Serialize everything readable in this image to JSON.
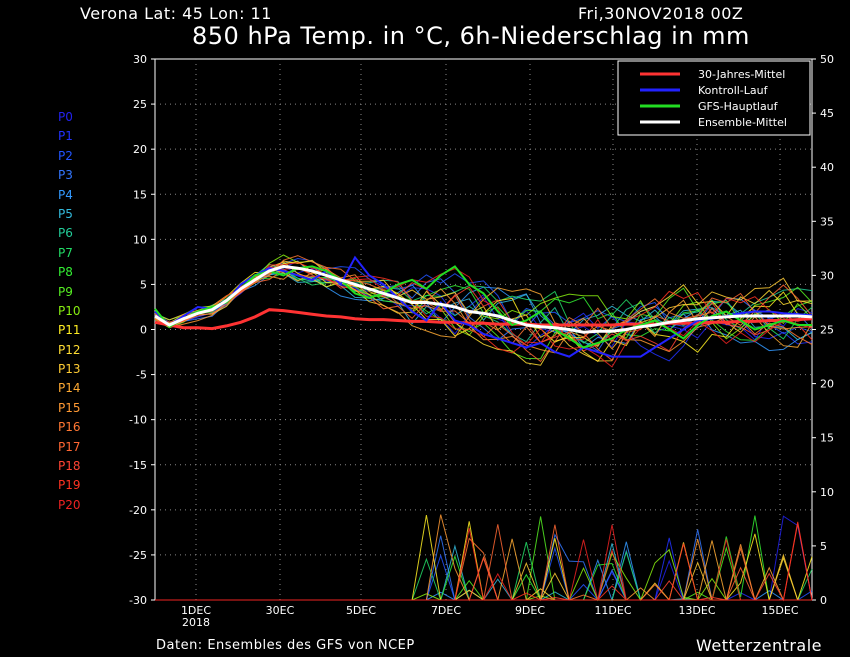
{
  "header": {
    "location": "Verona   Lat: 45 Lon: 11",
    "date": "Fri,30NOV2018 00Z",
    "title": "850 hPa Temp. in °C, 6h-Niederschlag in mm"
  },
  "footer": {
    "source": "Daten: Ensembles des GFS von NCEP",
    "brand": "Wetterzentrale"
  },
  "members": [
    {
      "label": "P0",
      "color": "#2222ee"
    },
    {
      "label": "P1",
      "color": "#2233ff"
    },
    {
      "label": "P2",
      "color": "#2255ff"
    },
    {
      "label": "P3",
      "color": "#3377ff"
    },
    {
      "label": "P4",
      "color": "#3399ff"
    },
    {
      "label": "P5",
      "color": "#33bbdd"
    },
    {
      "label": "P6",
      "color": "#22cc99"
    },
    {
      "label": "P7",
      "color": "#22dd66"
    },
    {
      "label": "P8",
      "color": "#33ee33"
    },
    {
      "label": "P9",
      "color": "#55ee22"
    },
    {
      "label": "P10",
      "color": "#88ee11"
    },
    {
      "label": "P11",
      "color": "#ffee22"
    },
    {
      "label": "P12",
      "color": "#ffdd33"
    },
    {
      "label": "P13",
      "color": "#ffcc33"
    },
    {
      "label": "P14",
      "color": "#ffaa33"
    },
    {
      "label": "P15",
      "color": "#ff9933"
    },
    {
      "label": "P16",
      "color": "#ff7733"
    },
    {
      "label": "P17",
      "color": "#ff6633"
    },
    {
      "label": "P18",
      "color": "#ff4433"
    },
    {
      "label": "P19",
      "color": "#ff3322"
    },
    {
      "label": "P20",
      "color": "#ee2222"
    }
  ],
  "chart_data": {
    "type": "line",
    "y_left": {
      "ticks": [
        30,
        25,
        20,
        15,
        10,
        5,
        0,
        -5,
        -10,
        -15,
        -20,
        -25,
        -30
      ],
      "range": [
        -30,
        30
      ]
    },
    "y_right": {
      "ticks": [
        50,
        45,
        40,
        35,
        30,
        25,
        20,
        15,
        10,
        5,
        0
      ],
      "range": [
        0,
        50
      ]
    },
    "x_tick_labels": [
      "1DEC",
      "30EC",
      "5DEC",
      "7DEC",
      "9DEC",
      "11DEC",
      "13DEC",
      "15DEC"
    ],
    "x_sublabel": "2018",
    "legend_position": "top-right",
    "legend": [
      {
        "label": "30-Jahres-Mittel",
        "color": "#ff3333"
      },
      {
        "label": "Kontroll-Lauf",
        "color": "#2222ff"
      },
      {
        "label": "GFS-Hauptlauf",
        "color": "#22dd22"
      },
      {
        "label": "Ensemble-Mittel",
        "color": "#ffffff"
      }
    ],
    "series": [
      {
        "name": "30-Jahres-Mittel",
        "color": "#ff3333",
        "width": 3,
        "values": [
          0.8,
          0.5,
          0.2,
          0.2,
          0.1,
          0.4,
          0.8,
          1.4,
          2.2,
          2.1,
          1.9,
          1.7,
          1.5,
          1.4,
          1.2,
          1.1,
          1.1,
          1.0,
          0.9,
          0.9,
          0.8,
          0.8,
          0.7,
          0.7,
          0.6,
          0.6,
          0.6,
          0.5,
          0.5,
          0.5,
          0.5,
          0.5,
          0.5,
          0.6,
          0.6,
          0.6,
          0.7,
          0.7,
          0.7,
          0.8,
          0.8,
          0.9,
          0.9,
          1.0,
          1.0,
          1.1,
          1.2
        ]
      },
      {
        "name": "Kontroll-Lauf",
        "color": "#2222ff",
        "width": 2,
        "values": [
          2.0,
          0.5,
          1.5,
          2.5,
          2.3,
          3.0,
          5.0,
          6.0,
          6.8,
          6.5,
          6.0,
          5.5,
          6.5,
          5.0,
          8.0,
          6.0,
          5.0,
          3.5,
          2.0,
          1.0,
          3.0,
          1.0,
          0.5,
          -0.5,
          -1.0,
          -1.5,
          -2.0,
          -1.5,
          -2.5,
          -3.0,
          -2.0,
          -2.5,
          -3.0,
          -3.0,
          -3.0,
          -2.0,
          -1.0,
          0.0,
          1.0,
          1.2,
          1.5,
          1.8,
          2.0,
          2.0,
          1.8,
          1.7,
          1.6
        ]
      },
      {
        "name": "GFS-Hauptlauf",
        "color": "#22dd22",
        "width": 2,
        "values": [
          2.3,
          0.3,
          1.2,
          2.0,
          2.5,
          3.0,
          4.5,
          6.0,
          6.5,
          6.0,
          6.8,
          7.0,
          6.5,
          5.5,
          4.0,
          3.5,
          4.0,
          5.0,
          5.5,
          4.5,
          6.0,
          7.0,
          5.0,
          4.0,
          2.0,
          0.5,
          1.0,
          2.0,
          0.0,
          -1.0,
          -2.0,
          -1.5,
          -1.0,
          0.0,
          0.5,
          1.0,
          0.0,
          -1.0,
          0.5,
          1.5,
          2.0,
          1.0,
          0.0,
          0.5,
          1.0,
          0.5,
          0.5
        ]
      },
      {
        "name": "Ensemble-Mittel",
        "color": "#ffffff",
        "width": 3,
        "values": [
          1.5,
          0.5,
          1.2,
          1.8,
          2.2,
          3.2,
          4.5,
          5.5,
          6.5,
          7.0,
          6.8,
          6.5,
          6.0,
          5.5,
          5.0,
          4.5,
          4.0,
          3.5,
          3.0,
          3.0,
          2.8,
          2.5,
          2.0,
          1.8,
          1.5,
          1.0,
          0.5,
          0.3,
          0.2,
          0.0,
          -0.3,
          -0.2,
          -0.2,
          0.0,
          0.3,
          0.5,
          0.8,
          1.0,
          1.2,
          1.3,
          1.4,
          1.5,
          1.5,
          1.5,
          1.5,
          1.5,
          1.4
        ]
      }
    ]
  }
}
